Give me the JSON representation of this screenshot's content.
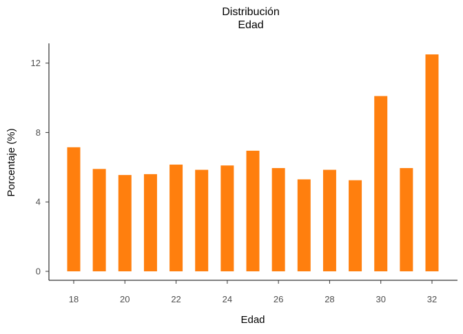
{
  "chart_data": {
    "type": "bar",
    "title": [
      "Distribución",
      "Edad"
    ],
    "xlabel": "Edad",
    "ylabel": "Porcentaje (%)",
    "x": [
      18,
      19,
      20,
      21,
      22,
      23,
      24,
      25,
      26,
      27,
      28,
      29,
      30,
      31,
      32
    ],
    "values": [
      7.15,
      5.9,
      5.55,
      5.6,
      6.15,
      5.85,
      6.1,
      6.95,
      5.95,
      5.3,
      5.85,
      5.25,
      10.1,
      5.95,
      12.5
    ],
    "xticks": [
      18,
      20,
      22,
      24,
      26,
      28,
      30,
      32
    ],
    "yticks": [
      0,
      4,
      8,
      12
    ],
    "ylim": [
      0,
      13.1
    ],
    "xlim": [
      17,
      33
    ],
    "bar_color": "#FF7F0E",
    "grid": false,
    "legend": "none"
  }
}
